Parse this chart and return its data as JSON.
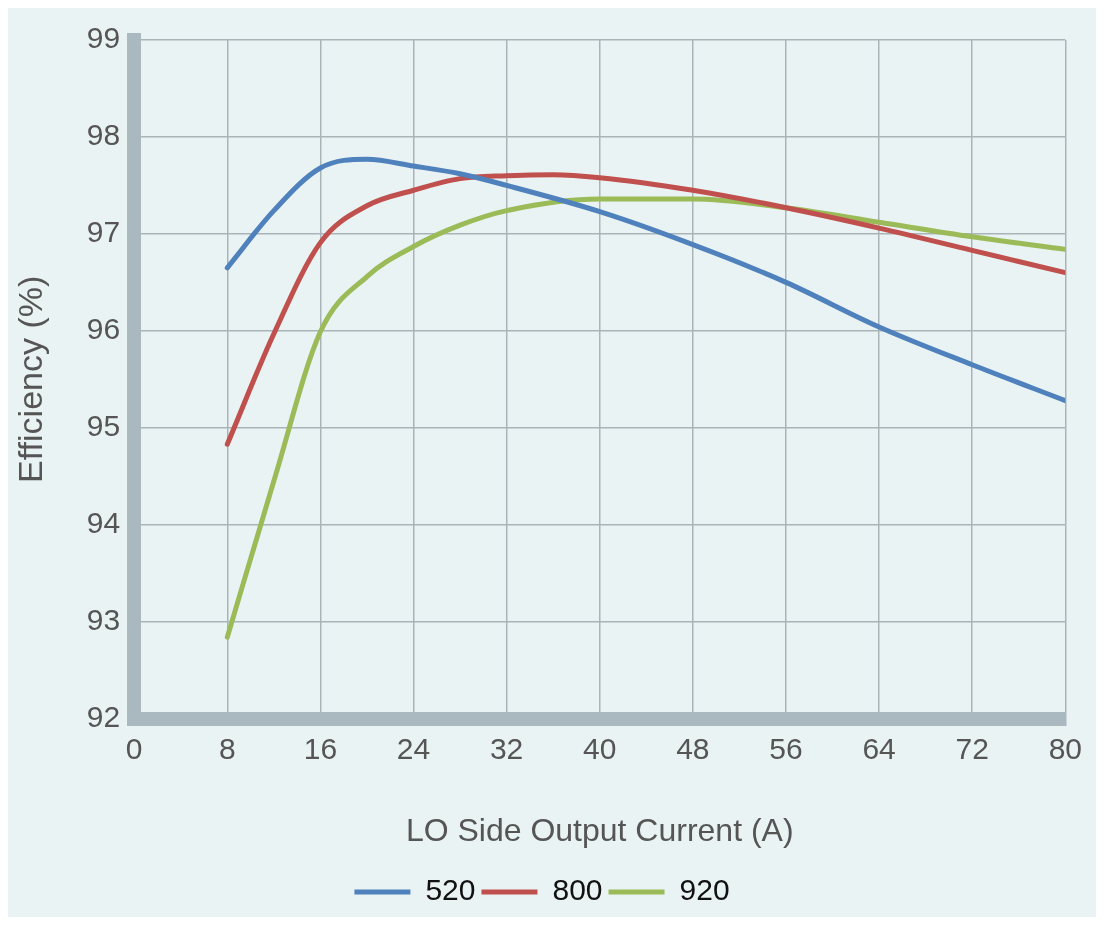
{
  "chart_data": {
    "type": "line",
    "xlabel": "LO Side Output Current (A)",
    "ylabel": "Efficiency (%)",
    "xlim": [
      0,
      80
    ],
    "xticks": [
      0,
      8,
      16,
      24,
      32,
      40,
      48,
      56,
      64,
      72,
      80
    ],
    "ylim": [
      92,
      99
    ],
    "yticks": [
      92,
      93,
      94,
      95,
      96,
      97,
      98,
      99
    ],
    "grid": true,
    "legend": "bottom",
    "marker": "none",
    "line_style": "solid",
    "series": [
      {
        "name": "520",
        "color": "#4f81bd",
        "x": [
          8,
          12,
          16,
          20,
          24,
          28,
          32,
          40,
          48,
          56,
          64,
          72,
          80
        ],
        "values": [
          96.65,
          97.24,
          97.68,
          97.77,
          97.7,
          97.62,
          97.5,
          97.23,
          96.89,
          96.5,
          96.04,
          95.65,
          95.28
        ]
      },
      {
        "name": "800",
        "color": "#c0504d",
        "x": [
          8,
          12,
          16,
          20,
          24,
          28,
          32,
          36,
          40,
          48,
          56,
          64,
          72,
          80
        ],
        "values": [
          94.83,
          95.97,
          96.91,
          97.29,
          97.45,
          97.57,
          97.6,
          97.61,
          97.58,
          97.45,
          97.27,
          97.06,
          96.83,
          96.6
        ]
      },
      {
        "name": "920",
        "color": "#9bbb59",
        "x": [
          8,
          12,
          16,
          20,
          24,
          28,
          32,
          40,
          48,
          56,
          64,
          72,
          80
        ],
        "values": [
          92.84,
          94.45,
          95.99,
          96.56,
          96.87,
          97.09,
          97.24,
          97.36,
          97.36,
          97.27,
          97.12,
          96.97,
          96.84
        ]
      }
    ]
  }
}
